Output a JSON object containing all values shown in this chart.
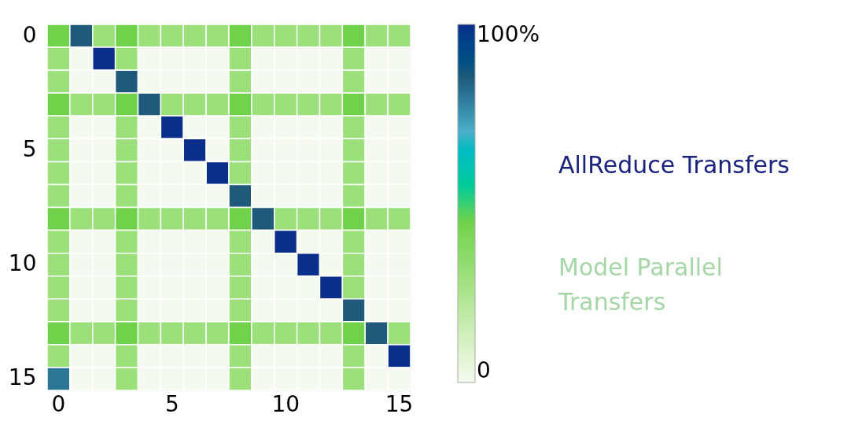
{
  "chart_data": {
    "type": "heatmap",
    "categories": [
      "0",
      null,
      null,
      null,
      null,
      "5",
      null,
      null,
      null,
      null,
      "10",
      null,
      null,
      null,
      null,
      "15"
    ],
    "y_categories": [
      "0",
      null,
      null,
      null,
      null,
      "5",
      null,
      null,
      null,
      null,
      "10",
      null,
      null,
      null,
      null,
      "15"
    ],
    "cells": [
      [
        45,
        85,
        30,
        45,
        30,
        30,
        30,
        30,
        45,
        30,
        30,
        30,
        30,
        45,
        30,
        30
      ],
      [
        30,
        0,
        100,
        30,
        0,
        0,
        0,
        0,
        30,
        0,
        0,
        0,
        0,
        30,
        0,
        0
      ],
      [
        30,
        0,
        0,
        85,
        0,
        0,
        0,
        0,
        30,
        0,
        0,
        0,
        0,
        30,
        0,
        0
      ],
      [
        45,
        30,
        30,
        45,
        85,
        30,
        30,
        30,
        45,
        30,
        30,
        30,
        30,
        45,
        30,
        30
      ],
      [
        30,
        0,
        0,
        30,
        0,
        100,
        0,
        0,
        30,
        0,
        0,
        0,
        0,
        30,
        0,
        0
      ],
      [
        30,
        0,
        0,
        30,
        0,
        0,
        100,
        0,
        30,
        0,
        0,
        0,
        0,
        30,
        0,
        0
      ],
      [
        30,
        0,
        0,
        30,
        0,
        0,
        0,
        100,
        30,
        0,
        0,
        0,
        0,
        30,
        0,
        0
      ],
      [
        30,
        0,
        0,
        30,
        0,
        0,
        0,
        0,
        85,
        0,
        0,
        0,
        0,
        30,
        0,
        0
      ],
      [
        45,
        30,
        30,
        45,
        30,
        30,
        30,
        30,
        45,
        85,
        30,
        30,
        30,
        45,
        30,
        30
      ],
      [
        30,
        0,
        0,
        30,
        0,
        0,
        0,
        0,
        30,
        0,
        100,
        0,
        0,
        30,
        0,
        0
      ],
      [
        30,
        0,
        0,
        30,
        0,
        0,
        0,
        0,
        30,
        0,
        0,
        100,
        0,
        30,
        0,
        0
      ],
      [
        30,
        0,
        0,
        30,
        0,
        0,
        0,
        0,
        30,
        0,
        0,
        0,
        100,
        30,
        0,
        0
      ],
      [
        30,
        0,
        0,
        30,
        0,
        0,
        0,
        0,
        30,
        0,
        0,
        0,
        0,
        85,
        0,
        0
      ],
      [
        45,
        30,
        30,
        45,
        30,
        30,
        30,
        30,
        45,
        30,
        30,
        30,
        30,
        45,
        85,
        30
      ],
      [
        30,
        0,
        0,
        30,
        0,
        0,
        0,
        0,
        30,
        0,
        0,
        0,
        0,
        30,
        0,
        100
      ],
      [
        80,
        0,
        0,
        30,
        0,
        0,
        0,
        0,
        30,
        0,
        0,
        0,
        0,
        30,
        0,
        0
      ]
    ],
    "clim": [
      0,
      100
    ],
    "cticks": [
      {
        "value": 0,
        "label": "0"
      },
      {
        "value": 100,
        "label": "100%"
      }
    ],
    "annotations": [
      "AllReduce Transfers",
      "Model Parallel Transfers"
    ]
  }
}
